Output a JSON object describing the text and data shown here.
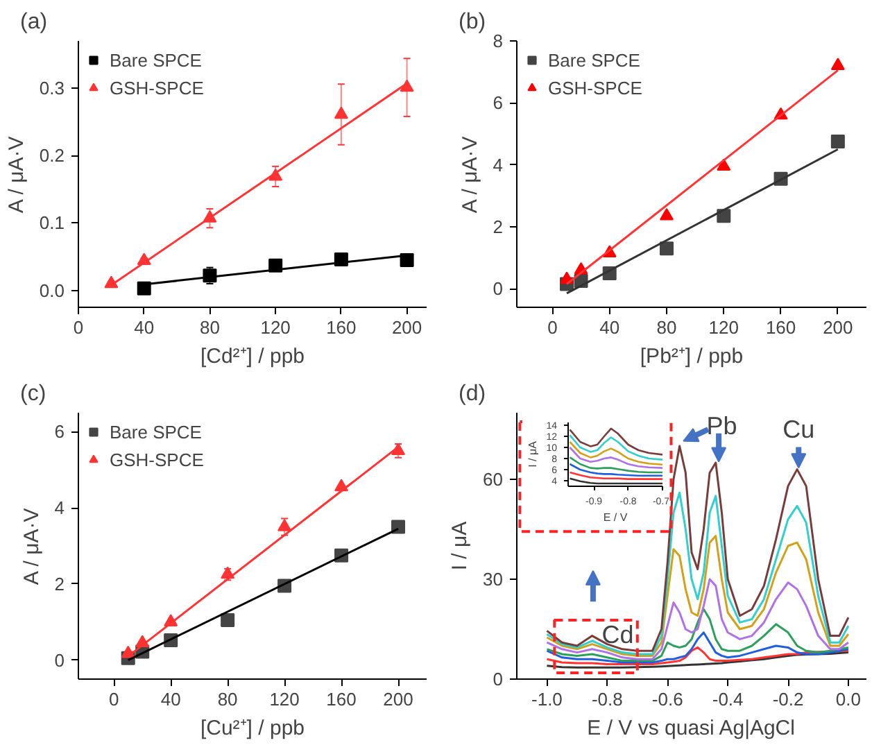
{
  "chart_data": [
    {
      "type": "scatter",
      "title": "(a)",
      "xlabel": "[Cd²⁺] / ppb",
      "ylabel": "A / μA·V",
      "xlim": [
        0,
        212
      ],
      "ylim": [
        -0.025,
        0.37
      ],
      "xticks": [
        0,
        40,
        80,
        120,
        160,
        200
      ],
      "yticks": [
        {
          "value": 0,
          "label": "0.0"
        },
        {
          "value": 0.1,
          "label": "0.1"
        },
        {
          "value": 0.2,
          "label": "0.2"
        },
        {
          "value": 0.3,
          "label": "0.3"
        }
      ],
      "legend": "top left",
      "series": [
        {
          "name": "Bare SPCE",
          "color": "#000000",
          "marker": "square",
          "x": [
            40,
            80,
            120,
            160,
            200
          ],
          "values": [
            0.003,
            0.022,
            0.037,
            0.046,
            0.045
          ],
          "errors": [
            0.004,
            0.012,
            0.006,
            0.008,
            0.005
          ]
        },
        {
          "name": "GSH-SPCE",
          "color": "#ff3333",
          "marker": "triangle",
          "x": [
            20,
            40,
            80,
            120,
            160,
            200
          ],
          "values": [
            0.01,
            0.044,
            0.107,
            0.169,
            0.261,
            0.301
          ],
          "errors": [
            0.003,
            0.004,
            0.014,
            0.015,
            0.045,
            0.043
          ]
        },
        {
          "type": "line",
          "color": "#000000",
          "x": [
            40,
            200
          ],
          "values": [
            0.009,
            0.052
          ]
        },
        {
          "type": "line",
          "color": "#ff3333",
          "x": [
            20,
            200
          ],
          "values": [
            0.008,
            0.307
          ]
        }
      ]
    },
    {
      "type": "scatter",
      "title": "(b)",
      "xlabel": "[Pb²⁺] / ppb",
      "ylabel": "A / μA·V",
      "xlim": [
        -25,
        220
      ],
      "ylim": [
        -0.6,
        8
      ],
      "xticks": [
        0,
        40,
        80,
        120,
        160,
        200
      ],
      "yticks": [
        0,
        2,
        4,
        6,
        8
      ],
      "legend": "top left",
      "series": [
        {
          "name": "Bare SPCE",
          "color": "#444444",
          "marker": "square",
          "x": [
            10,
            20,
            40,
            80,
            120,
            160,
            200
          ],
          "values": [
            0.15,
            0.25,
            0.5,
            1.3,
            2.35,
            3.55,
            4.75
          ]
        },
        {
          "name": "GSH-SPCE",
          "color": "#ff0000",
          "marker": "triangle",
          "x": [
            10,
            20,
            40,
            80,
            120,
            160,
            200
          ],
          "values": [
            0.3,
            0.6,
            1.15,
            2.35,
            3.95,
            5.6,
            7.2
          ]
        },
        {
          "type": "line",
          "color": "#333333",
          "x": [
            10,
            200
          ],
          "values": [
            -0.15,
            4.5
          ]
        },
        {
          "type": "line",
          "color": "#ff3333",
          "x": [
            10,
            200
          ],
          "values": [
            0.15,
            7.05
          ]
        }
      ]
    },
    {
      "type": "scatter",
      "title": "(c)",
      "xlabel": "[Cu²⁺] / ppb",
      "ylabel": "A / μA·V",
      "xlim": [
        -25,
        220
      ],
      "ylim": [
        -0.5,
        6.5
      ],
      "xticks": [
        0,
        40,
        80,
        120,
        160,
        200
      ],
      "yticks": [
        0,
        2,
        4,
        6
      ],
      "legend": "top left",
      "series": [
        {
          "name": "Bare SPCE",
          "color": "#444444",
          "marker": "square",
          "x": [
            10,
            20,
            40,
            80,
            120,
            160,
            200
          ],
          "values": [
            0.05,
            0.22,
            0.52,
            1.05,
            1.95,
            2.75,
            3.5
          ]
        },
        {
          "name": "GSH-SPCE",
          "color": "#ff3333",
          "marker": "triangle",
          "x": [
            10,
            20,
            40,
            80,
            120,
            160,
            200
          ],
          "values": [
            0.17,
            0.45,
            1.0,
            2.25,
            3.5,
            4.55,
            5.5
          ],
          "errors": [
            0.05,
            0.05,
            0.05,
            0.15,
            0.22,
            0.05,
            0.18
          ]
        },
        {
          "type": "line",
          "color": "#000000",
          "x": [
            10,
            200
          ],
          "values": [
            0.0,
            3.45
          ]
        },
        {
          "type": "line",
          "color": "#ff3333",
          "x": [
            10,
            200
          ],
          "values": [
            0.1,
            5.6
          ]
        }
      ]
    },
    {
      "type": "line",
      "title": "(d)",
      "xlabel": "E / V vs quasi Ag|AgCl",
      "ylabel": "I / μA",
      "xlim": [
        -1.1,
        0.06
      ],
      "ylim": [
        0,
        80
      ],
      "xticks": [
        {
          "value": -1.0,
          "label": "-1.0"
        },
        {
          "value": -0.8,
          "label": "-0.8"
        },
        {
          "value": -0.6,
          "label": "-0.6"
        },
        {
          "value": -0.4,
          "label": "-0.4"
        },
        {
          "value": -0.2,
          "label": "-0.2"
        },
        {
          "value": 0,
          "label": "0.0"
        }
      ],
      "yticks": [
        0,
        30,
        60
      ],
      "x": [
        -1.0,
        -0.95,
        -0.9,
        -0.85,
        -0.8,
        -0.75,
        -0.7,
        -0.65,
        -0.62,
        -0.6,
        -0.58,
        -0.56,
        -0.54,
        -0.52,
        -0.5,
        -0.48,
        -0.46,
        -0.44,
        -0.42,
        -0.4,
        -0.36,
        -0.32,
        -0.28,
        -0.24,
        -0.2,
        -0.17,
        -0.14,
        -0.1,
        -0.06,
        -0.03,
        0.0
      ],
      "annotations": [
        "Pb",
        "Cu",
        "Cd"
      ],
      "series": [
        {
          "color": "#333333",
          "values": [
            4,
            3.6,
            3.5,
            3.5,
            3.5,
            3.5,
            3.6,
            3.7,
            3.8,
            3.9,
            4,
            4.1,
            4.2,
            4.3,
            4.4,
            4.5,
            4.6,
            4.7,
            4.8,
            5,
            5.3,
            5.7,
            6,
            6.5,
            7,
            7.3,
            7.4,
            7.5,
            7.6,
            7.8,
            8.0
          ]
        },
        {
          "color": "#ff3333",
          "values": [
            6,
            5,
            4.8,
            4.8,
            4.5,
            4.5,
            4.5,
            4.5,
            4.8,
            5,
            5.2,
            5.5,
            6.5,
            8.5,
            9.5,
            8,
            6,
            5.5,
            5.5,
            5.5,
            5.8,
            6,
            6.5,
            7,
            7.5,
            7.5,
            8,
            8.2,
            8.3,
            8.4,
            8.5
          ]
        },
        {
          "color": "#1f5fe0",
          "values": [
            8.5,
            6.5,
            6,
            6,
            5.5,
            5,
            5,
            5,
            5.5,
            6,
            6,
            6.5,
            7,
            9,
            12,
            14,
            11,
            8,
            7,
            6.5,
            7,
            8,
            9,
            10,
            9.5,
            8,
            7.5,
            7.5,
            8,
            8.5,
            9
          ]
        },
        {
          "color": "#2ca05a",
          "values": [
            9,
            7.5,
            7,
            7.5,
            6.5,
            5.5,
            5.5,
            5.5,
            7,
            11,
            10,
            9.5,
            10,
            12,
            17,
            21,
            18,
            12,
            9,
            8.5,
            8.5,
            10,
            13,
            16.5,
            14,
            10,
            8.5,
            8,
            8.5,
            9,
            9.5
          ]
        },
        {
          "color": "#b070e8",
          "values": [
            11,
            9,
            8,
            9,
            8,
            6.5,
            6,
            6,
            9,
            16,
            23,
            20,
            15,
            14,
            15,
            22,
            30,
            28,
            18,
            14,
            12,
            13,
            17,
            24,
            29,
            27,
            22,
            13,
            9,
            9,
            11
          ]
        },
        {
          "color": "#d4a017",
          "values": [
            12.5,
            10,
            9,
            10.5,
            9,
            7.5,
            7,
            7,
            11,
            25,
            39,
            37,
            27,
            20,
            19,
            27,
            41,
            43,
            30,
            20,
            15,
            16,
            21,
            32,
            40,
            41,
            36,
            20,
            10,
            10,
            13.5
          ]
        },
        {
          "color": "#30d0d0",
          "values": [
            13.5,
            10.5,
            9.5,
            11.5,
            9.5,
            8,
            7.5,
            7.5,
            13,
            30,
            50,
            56,
            45,
            30,
            24,
            32,
            50,
            55,
            40,
            25,
            17,
            18,
            24,
            36,
            48,
            52,
            47,
            25,
            11,
            11,
            16
          ]
        },
        {
          "color": "#7a3b3b",
          "values": [
            14.5,
            11,
            10,
            13,
            10.5,
            9,
            8.5,
            8.5,
            15,
            35,
            60,
            70,
            62,
            38,
            33,
            45,
            62,
            65,
            50,
            30,
            19,
            21,
            28,
            42,
            58,
            63,
            58,
            30,
            13,
            13,
            18.5
          ]
        }
      ]
    },
    {
      "type": "line",
      "xlabel": "E / V",
      "ylabel": "I / μA",
      "xlim": [
        -0.975,
        -0.7
      ],
      "ylim": [
        3,
        14.5
      ],
      "xticks": [
        {
          "value": -0.9,
          "label": "-0.9"
        },
        {
          "value": -0.8,
          "label": "-0.8"
        },
        {
          "value": -0.7,
          "label": "-0.7"
        }
      ],
      "yticks": [
        4,
        6,
        8,
        10,
        12,
        14
      ],
      "x": [
        -0.97,
        -0.94,
        -0.91,
        -0.89,
        -0.87,
        -0.85,
        -0.83,
        -0.8,
        -0.77,
        -0.74,
        -0.7
      ],
      "series": [
        {
          "color": "#333333",
          "values": [
            4.4,
            3.9,
            3.6,
            3.5,
            3.5,
            3.5,
            3.5,
            3.5,
            3.5,
            3.5,
            3.5
          ]
        },
        {
          "color": "#ff3333",
          "values": [
            5.5,
            5,
            4.6,
            4.5,
            4.4,
            4.4,
            4.4,
            4.3,
            4.3,
            4.3,
            4.3
          ]
        },
        {
          "color": "#1f5fe0",
          "values": [
            7,
            6,
            5.5,
            5.3,
            5.2,
            5.2,
            5.1,
            5,
            4.9,
            4.9,
            4.9
          ]
        },
        {
          "color": "#2ca05a",
          "values": [
            8.2,
            7,
            6.3,
            6.2,
            6.3,
            6.3,
            6.1,
            5.8,
            5.6,
            5.5,
            5.5
          ]
        },
        {
          "color": "#b070e8",
          "values": [
            10,
            8,
            7.4,
            7.6,
            8,
            8.2,
            7.8,
            7,
            6.6,
            6.4,
            6.3
          ]
        },
        {
          "color": "#d4a017",
          "values": [
            11,
            9,
            8.2,
            8.5,
            9.3,
            9.8,
            9.2,
            8,
            7.4,
            7.1,
            6.9
          ]
        },
        {
          "color": "#30d0d0",
          "values": [
            12.2,
            10,
            9.2,
            9.5,
            10.8,
            11.8,
            11,
            9.3,
            8.5,
            8,
            7.8
          ]
        },
        {
          "color": "#7a3b3b",
          "values": [
            13.2,
            11,
            10.2,
            10.5,
            12,
            13.4,
            12.5,
            10.5,
            9.5,
            9,
            8.7
          ]
        }
      ]
    }
  ]
}
